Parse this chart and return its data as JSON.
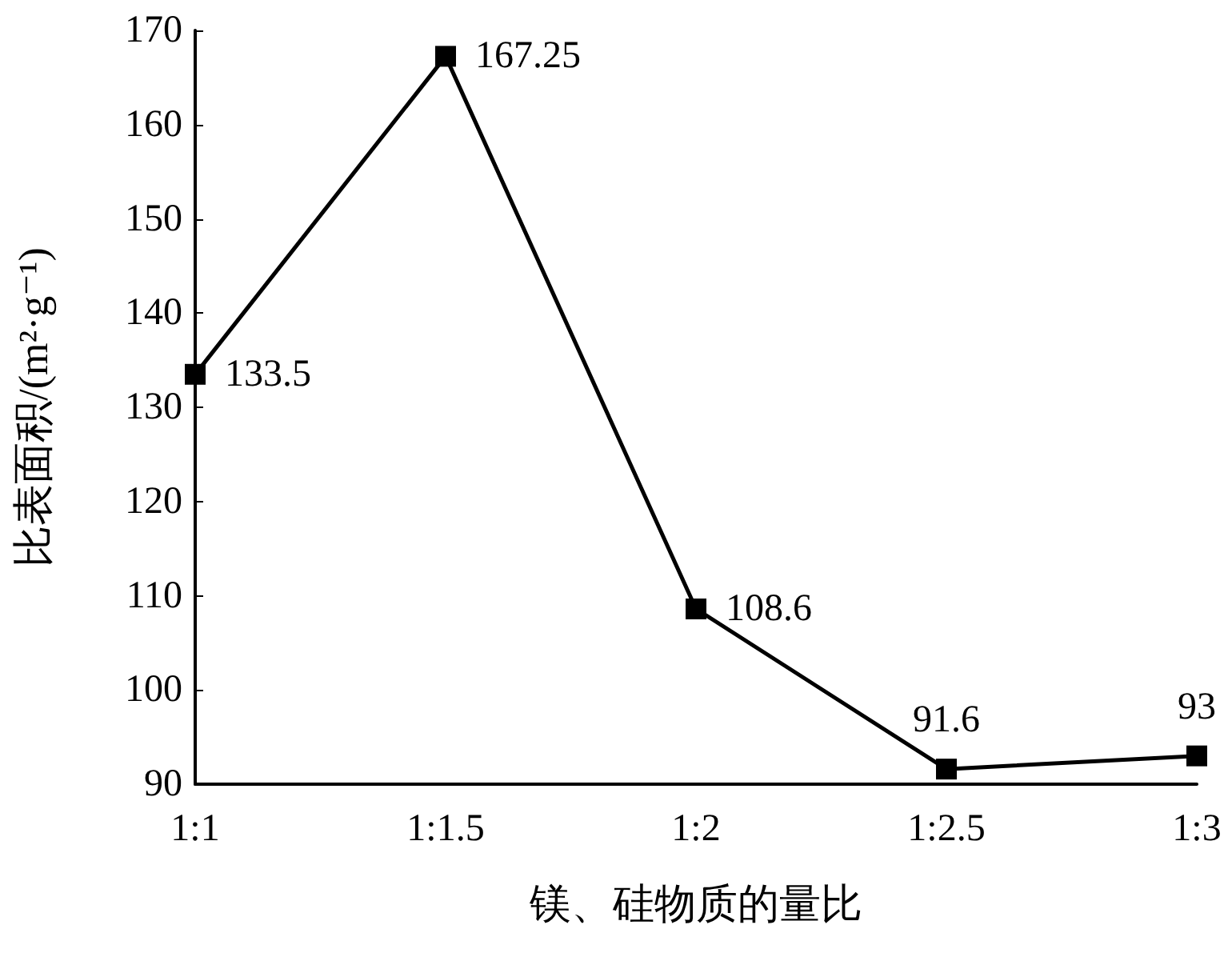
{
  "chart_data": {
    "type": "line",
    "xlabel": "镁、硅物质的量比",
    "ylabel": "比表面积/(m²·g⁻¹)",
    "categories": [
      "1:1",
      "1:1.5",
      "1:2",
      "1:2.5",
      "1:3"
    ],
    "series": [
      {
        "color": "#000000",
        "values": [
          133.5,
          167.25,
          108.6,
          91.6,
          93
        ]
      }
    ],
    "ylim": [
      90,
      170
    ],
    "yticks": [
      90,
      100,
      110,
      120,
      130,
      140,
      150,
      160,
      170
    ],
    "grid": false,
    "marker": "square",
    "line_style": "solid",
    "data_labels": true
  }
}
